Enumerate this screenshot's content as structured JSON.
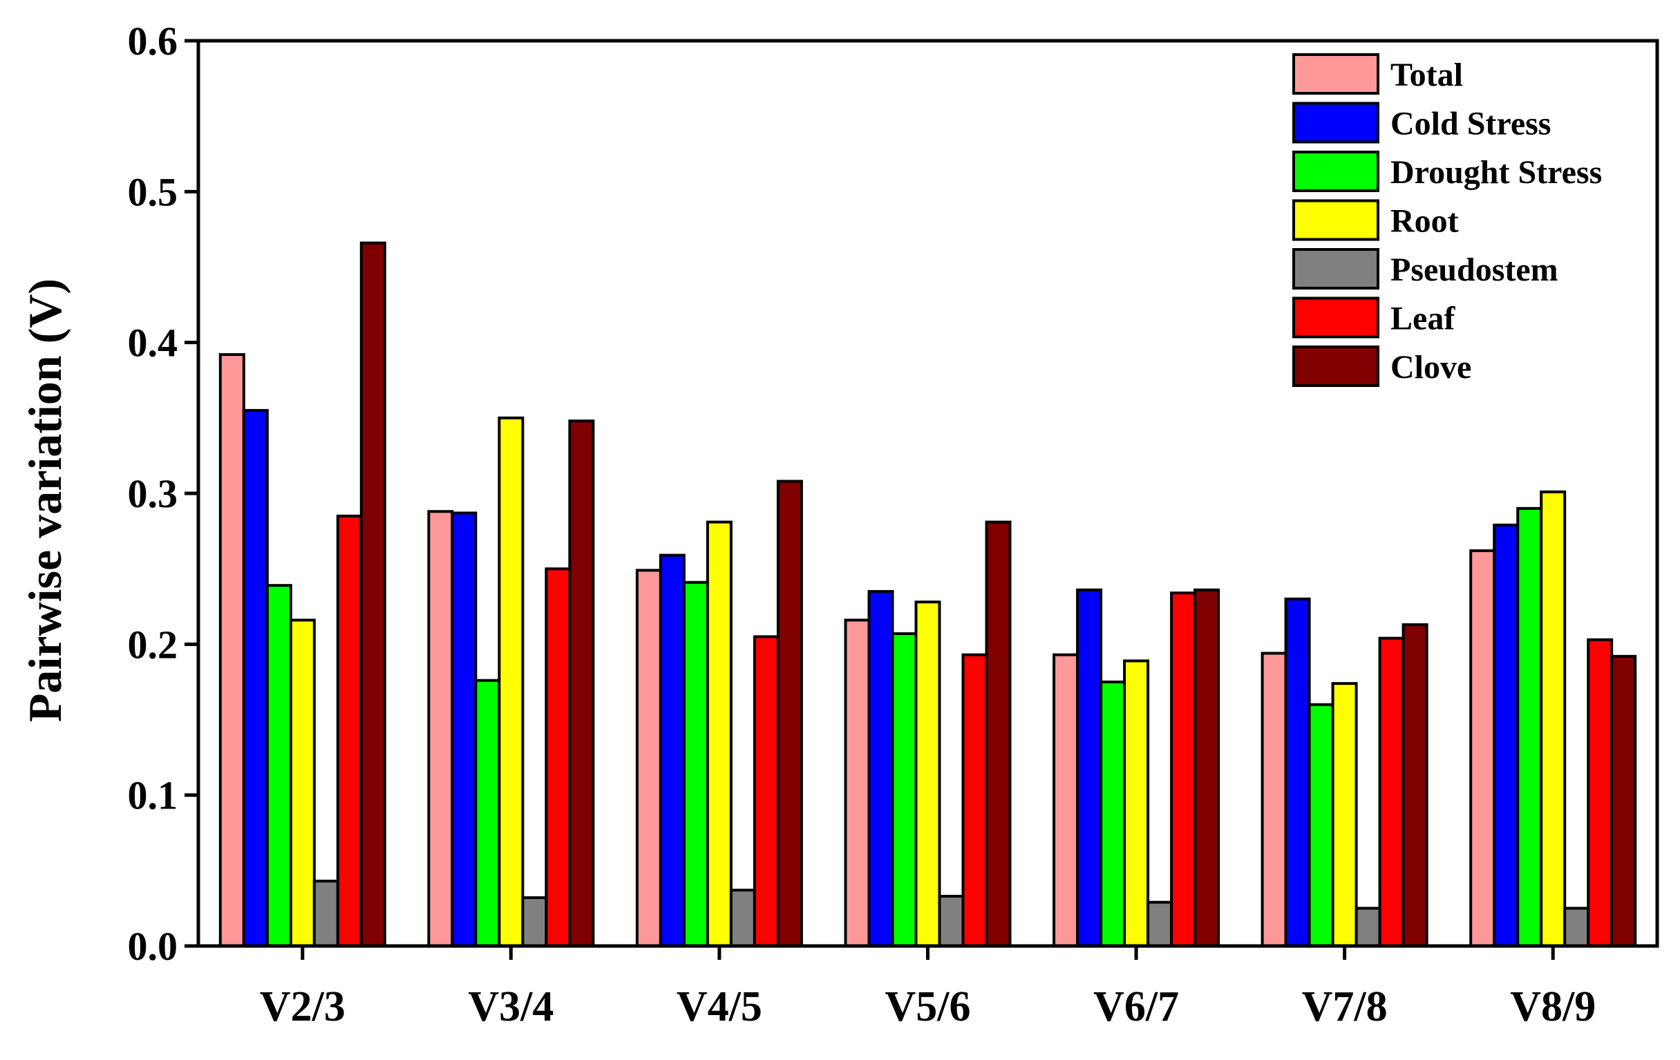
{
  "chart_data": {
    "type": "bar",
    "title": "",
    "xlabel": "",
    "ylabel": "Pairwise variation (V)",
    "ylim": [
      0,
      0.6
    ],
    "yticks": [
      "0.0",
      "0.1",
      "0.2",
      "0.3",
      "0.4",
      "0.5",
      "0.6"
    ],
    "categories": [
      "V2/3",
      "V3/4",
      "V4/5",
      "V5/6",
      "V6/7",
      "V7/8",
      "V8/9"
    ],
    "legend_position": "top-right",
    "series": [
      {
        "name": "Total",
        "color": "#ff9999",
        "values": [
          0.392,
          0.288,
          0.249,
          0.216,
          0.193,
          0.194,
          0.262
        ]
      },
      {
        "name": "Cold Stress",
        "color": "#0000ff",
        "values": [
          0.355,
          0.287,
          0.259,
          0.235,
          0.236,
          0.23,
          0.279
        ]
      },
      {
        "name": "Drought Stress",
        "color": "#00ff00",
        "values": [
          0.239,
          0.176,
          0.241,
          0.207,
          0.175,
          0.16,
          0.29
        ]
      },
      {
        "name": "Root",
        "color": "#ffff00",
        "values": [
          0.216,
          0.35,
          0.281,
          0.228,
          0.189,
          0.174,
          0.301
        ]
      },
      {
        "name": "Pseudostem",
        "color": "#808080",
        "values": [
          0.043,
          0.032,
          0.037,
          0.033,
          0.029,
          0.025,
          0.025
        ]
      },
      {
        "name": "Leaf",
        "color": "#ff0000",
        "values": [
          0.285,
          0.25,
          0.205,
          0.193,
          0.234,
          0.204,
          0.203
        ]
      },
      {
        "name": "Clove",
        "color": "#800000",
        "values": [
          0.466,
          0.348,
          0.308,
          0.281,
          0.236,
          0.213,
          0.192
        ]
      }
    ]
  }
}
